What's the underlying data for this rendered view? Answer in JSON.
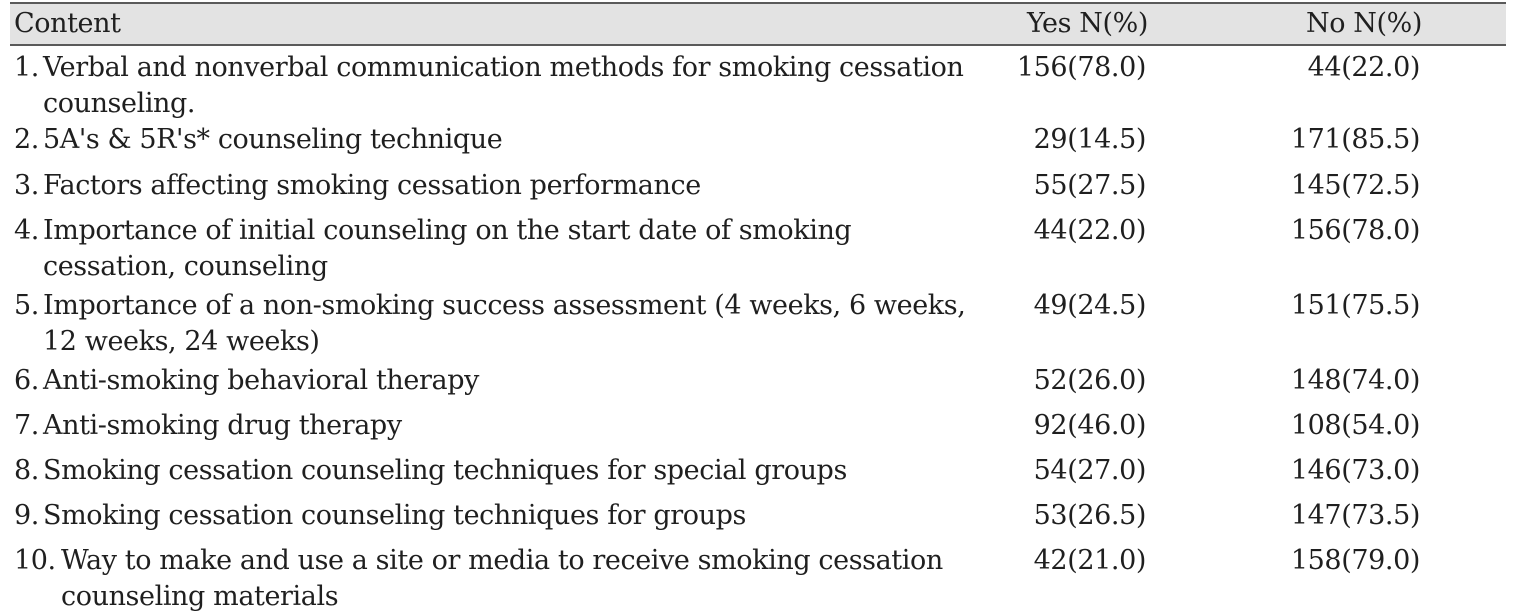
{
  "table": {
    "headers": {
      "content": "Content",
      "yes": "Yes N(%)",
      "no": "No N(%)"
    },
    "rows": [
      {
        "num": "1.",
        "text": "Verbal and nonverbal communication methods for smoking cessation counseling.",
        "yes": "156(78.0)",
        "no": "44(22.0)"
      },
      {
        "num": "2.",
        "text": "5A's & 5R's* counseling technique",
        "yes": "29(14.5)",
        "no": "171(85.5)"
      },
      {
        "num": "3.",
        "text": "Factors affecting smoking cessation performance",
        "yes": "55(27.5)",
        "no": "145(72.5)"
      },
      {
        "num": "4.",
        "text": "Importance of initial counseling on the start date of smoking cessation, counseling",
        "yes": "44(22.0)",
        "no": "156(78.0)"
      },
      {
        "num": "5.",
        "text": "Importance of a non-smoking success assessment (4 weeks, 6 weeks, 12 weeks, 24 weeks)",
        "yes": "49(24.5)",
        "no": "151(75.5)"
      },
      {
        "num": "6.",
        "text": "Anti-smoking behavioral therapy",
        "yes": "52(26.0)",
        "no": "148(74.0)"
      },
      {
        "num": "7.",
        "text": "Anti-smoking drug therapy",
        "yes": "92(46.0)",
        "no": "108(54.0)"
      },
      {
        "num": "8.",
        "text": "Smoking cessation counseling techniques for special groups",
        "yes": "54(27.0)",
        "no": "146(73.0)"
      },
      {
        "num": "9.",
        "text": "Smoking cessation counseling techniques for groups",
        "yes": "53(26.5)",
        "no": "147(73.5)"
      },
      {
        "num": "10.",
        "text": "Way to make and use a site or media to receive smoking cessation counseling materials",
        "yes": "42(21.0)",
        "no": "158(79.0)"
      }
    ]
  }
}
